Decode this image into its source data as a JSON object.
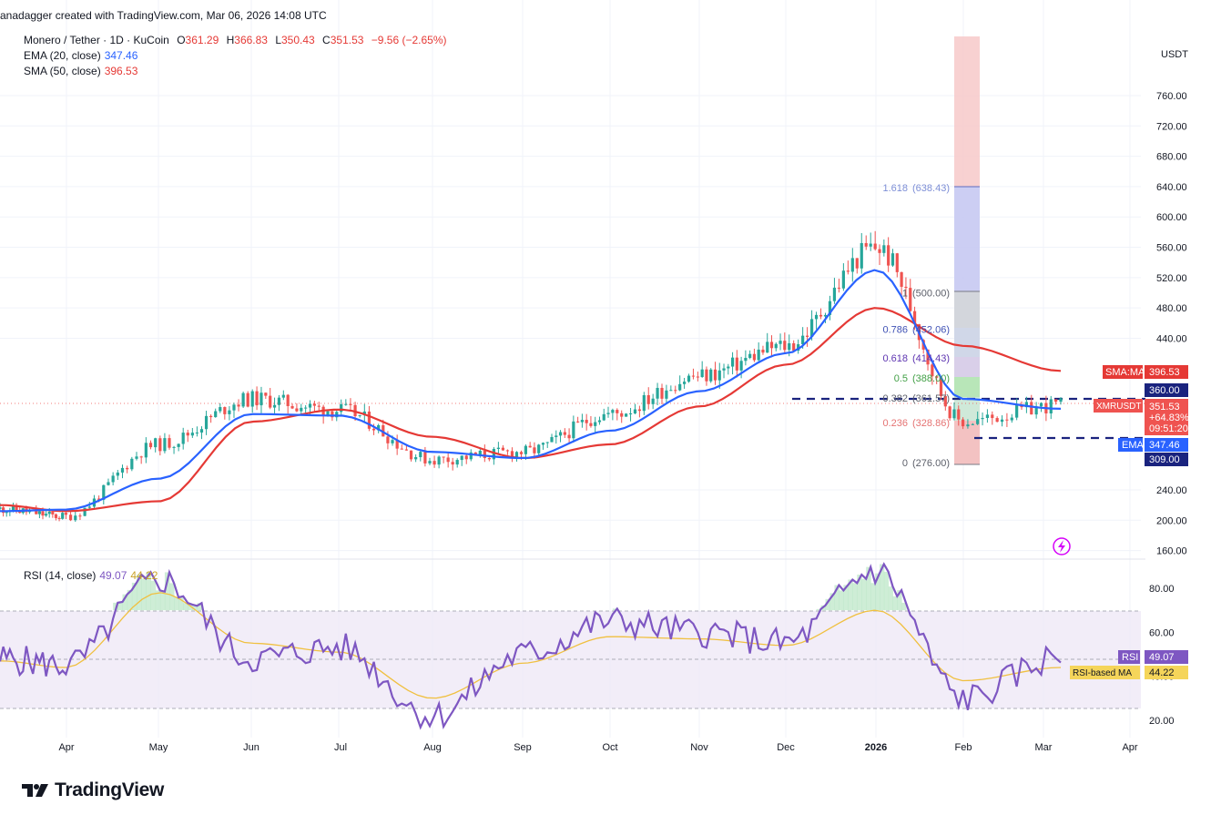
{
  "header": {
    "credit": "anadagger created with TradingView.com, Mar 06, 2026 14:08 UTC",
    "symbol_line": "Monero / Tether · 1D · KuCoin",
    "open_label": "O",
    "open_value": "361.29",
    "high_label": "H",
    "high_value": "366.83",
    "low_label": "L",
    "low_value": "350.43",
    "close_label": "C",
    "close_value": "351.53",
    "change": "−9.56 (−2.65%)",
    "ema_label": "EMA (20, close)",
    "ema_value": "347.46",
    "sma_label": "SMA (50, close)",
    "sma_value": "396.53"
  },
  "price_axis": {
    "unit": "USDT",
    "ticks": [
      "760.00",
      "720.00",
      "680.00",
      "640.00",
      "600.00",
      "560.00",
      "520.00",
      "480.00",
      "440.00",
      "240.00",
      "200.00",
      "160.00"
    ]
  },
  "price_tags": {
    "sma_label": "SMA:MA",
    "sma_value": "396.53",
    "level_high": "360.00",
    "symbol": "XMRUSDT",
    "last": "351.53",
    "change_pct": "+64.83%",
    "countdown": "09:51:20",
    "ema_label": "EMA",
    "ema_value": "347.46",
    "level_low": "309.00"
  },
  "fib_labels": [
    {
      "level": "1.618",
      "value": "(638.43)"
    },
    {
      "level": "1",
      "value": "(500.00)"
    },
    {
      "level": "0.786",
      "value": "(452.06)"
    },
    {
      "level": "0.618",
      "value": "(414.43)"
    },
    {
      "level": "0.5",
      "value": "(388.00)"
    },
    {
      "level": "0.382",
      "value": "(361.57)"
    },
    {
      "level": "0.236",
      "value": "(328.86)"
    },
    {
      "level": "0",
      "value": "(276.00)"
    }
  ],
  "time_axis": [
    "Apr",
    "May",
    "Jun",
    "Jul",
    "Aug",
    "Sep",
    "Oct",
    "Nov",
    "Dec",
    "2026",
    "Feb",
    "Mar",
    "Apr"
  ],
  "rsi": {
    "label": "RSI (14, close)",
    "value": "49.07",
    "ma_value": "44.22",
    "ticks": [
      "80.00",
      "60.00",
      "40.00",
      "20.00"
    ],
    "tag_rsi_label": "RSI",
    "tag_rsi_value": "49.07",
    "tag_ma_label": "RSI-based MA",
    "tag_ma_value": "44.22"
  },
  "colors": {
    "up": "#26a69a",
    "down": "#ef5350",
    "ema": "#2962ff",
    "sma": "#e53935",
    "rsi": "#7e57c2",
    "rsi_ma": "#f0c040",
    "level": "#1a237e"
  },
  "brand": "TradingView",
  "chart_data": {
    "type": "line",
    "title": "Monero / Tether · 1D · KuCoin",
    "xlabel": "",
    "ylabel": "USDT",
    "ylim": [
      160,
      800
    ],
    "x": [
      "Mar",
      "Apr",
      "May",
      "Jun",
      "Jul",
      "Aug",
      "Sep",
      "Oct",
      "Nov",
      "Dec",
      "2026",
      "Feb",
      "Mar"
    ],
    "series": [
      {
        "name": "XMRUSDT",
        "values": [
          215,
          205,
          300,
          360,
          345,
          280,
          290,
          340,
          390,
          430,
          560,
          330,
          352
        ]
      },
      {
        "name": "EMA (20, close)",
        "values": [
          212,
          214,
          255,
          340,
          338,
          290,
          282,
          318,
          370,
          420,
          530,
          360,
          347
        ]
      },
      {
        "name": "SMA (50, close)",
        "values": [
          220,
          212,
          225,
          330,
          346,
          310,
          282,
          300,
          350,
          405,
          480,
          430,
          397
        ]
      }
    ],
    "rsi": {
      "ylim": [
        10,
        95
      ],
      "x": [
        "Mar",
        "Apr",
        "May",
        "Jun",
        "Jul",
        "Aug",
        "Sep",
        "Oct",
        "Nov",
        "Dec",
        "2026",
        "Feb",
        "Mar"
      ],
      "series": [
        {
          "name": "RSI (14, close)",
          "values": [
            48,
            45,
            84,
            48,
            53,
            22,
            50,
            65,
            60,
            55,
            88,
            30,
            49
          ]
        },
        {
          "name": "RSI-based MA",
          "values": [
            47,
            44,
            78,
            55,
            51,
            30,
            46,
            58,
            57,
            54,
            70,
            38,
            44
          ]
        }
      ]
    },
    "levels": [
      360,
      309
    ],
    "fib": [
      {
        "level": 1.618,
        "price": 638.43
      },
      {
        "level": 1,
        "price": 500
      },
      {
        "level": 0.786,
        "price": 452.06
      },
      {
        "level": 0.618,
        "price": 414.43
      },
      {
        "level": 0.5,
        "price": 388
      },
      {
        "level": 0.382,
        "price": 361.57
      },
      {
        "level": 0.236,
        "price": 328.86
      },
      {
        "level": 0,
        "price": 276
      }
    ],
    "grid": true
  }
}
